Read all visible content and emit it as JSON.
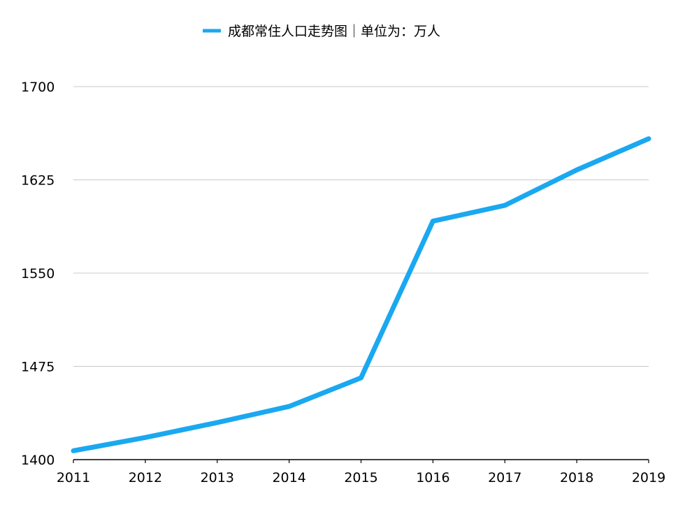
{
  "chart_data": {
    "type": "line",
    "title": "",
    "xlabel": "",
    "ylabel": "",
    "categories": [
      "2011",
      "2012",
      "2013",
      "2014",
      "2015",
      "1016",
      "2017",
      "2018",
      "2019"
    ],
    "series": [
      {
        "name": "成都常住人口走势图｜单位为：万人",
        "color": "#1aa8f0",
        "values": [
          1407.1,
          1417.8,
          1429.8,
          1442.8,
          1465.8,
          1591.8,
          1604.5,
          1633.0,
          1658.1
        ]
      }
    ],
    "y_ticks": [
      "1700",
      "1625",
      "1550",
      "1475",
      "1400"
    ],
    "ylim": [
      1400,
      1700
    ],
    "grid": true,
    "legend_position": "top-center",
    "colors": {
      "grid": "#c8c8c8",
      "axis": "#000000",
      "text": "#000000"
    }
  }
}
